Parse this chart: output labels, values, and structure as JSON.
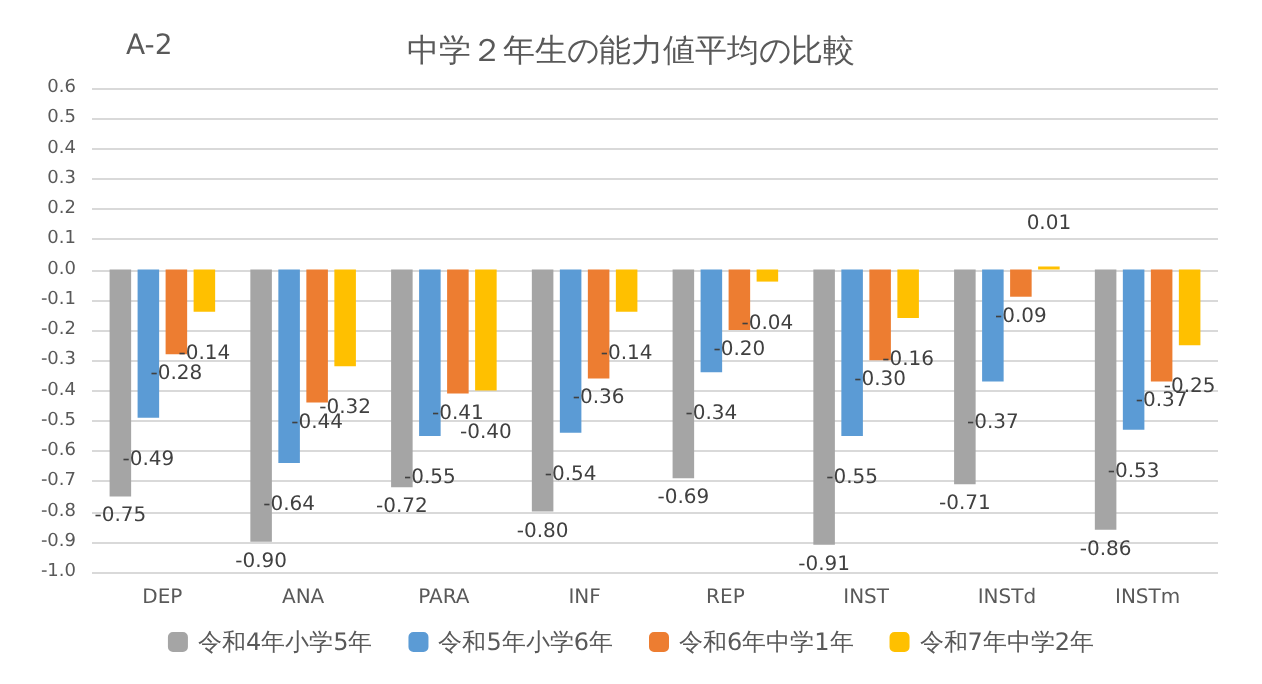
{
  "chart_data": {
    "type": "bar",
    "title": "中学２年生の能力値平均の比較",
    "annotations": [
      "A-2"
    ],
    "categories": [
      "DEP",
      "ANA",
      "PARA",
      "INF",
      "REP",
      "INST",
      "INSTd",
      "INSTm"
    ],
    "series": [
      {
        "name": "令和4年小学5年",
        "color": "#a5a5a5",
        "values": [
          -0.75,
          -0.9,
          -0.72,
          -0.8,
          -0.69,
          -0.91,
          -0.71,
          -0.86
        ],
        "value_labels": [
          "-0.75",
          "-0.90",
          "-0.72",
          "-0.80",
          "-0.69",
          "-0.91",
          "-0.71",
          "-0.86"
        ]
      },
      {
        "name": "令和5年小学6年",
        "color": "#5b9bd5",
        "values": [
          -0.49,
          -0.64,
          -0.55,
          -0.54,
          -0.34,
          -0.55,
          -0.37,
          -0.53
        ],
        "value_labels": [
          "-0.49",
          "-0.64",
          "-0.55",
          "-0.54",
          "-0.34",
          "-0.55",
          "-0.37",
          "-0.53"
        ]
      },
      {
        "name": "令和6年中学1年",
        "color": "#ed7d31",
        "values": [
          -0.28,
          -0.44,
          -0.41,
          -0.36,
          -0.2,
          -0.3,
          -0.09,
          -0.37
        ],
        "value_labels": [
          "-0.28",
          "-0.44",
          "-0.41",
          "-0.36",
          "-0.20",
          "-0.30",
          "-0.09",
          "-0.37"
        ]
      },
      {
        "name": "令和7年中学2年",
        "color": "#ffc000",
        "values": [
          -0.14,
          -0.32,
          -0.4,
          -0.14,
          -0.04,
          -0.16,
          0.01,
          -0.25
        ],
        "value_labels": [
          "-0.14",
          "-0.32",
          "-0.40",
          "-0.14",
          "-0.04",
          "-0.16",
          "0.01",
          "-0.25"
        ]
      }
    ],
    "ylim": [
      -1,
      0.6
    ],
    "yticks": [
      {
        "value": -1,
        "label": "-1.0"
      },
      -0.9,
      -0.8,
      -0.7,
      -0.6,
      -0.5,
      -0.4,
      -0.3,
      -0.2,
      -0.1,
      {
        "value": 0,
        "label": "0.0"
      },
      0.1,
      0.2,
      0.3,
      0.4,
      0.5,
      0.6
    ],
    "grid": "y",
    "legend": "bottom"
  }
}
